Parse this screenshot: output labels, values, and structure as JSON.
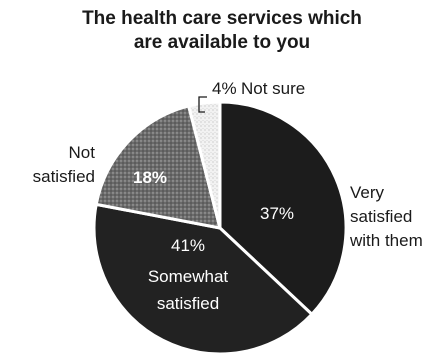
{
  "chart_data": {
    "type": "pie",
    "title": "The health care services which are available to you",
    "title_lines": [
      "The health care services which",
      "are available to you"
    ],
    "slices": [
      {
        "label": "Very satisfied with them",
        "label_lines": [
          "Very",
          "satisfied",
          "with them"
        ],
        "value": 37,
        "value_label": "37%",
        "color": "#1c1c1c"
      },
      {
        "label": "Somewhat satisfied",
        "label_lines": [
          "Somewhat",
          "satisfied"
        ],
        "value": 41,
        "value_label": "41%",
        "color": "#222222"
      },
      {
        "label": "Not satisfied",
        "label_lines": [
          "Not",
          "satisfied"
        ],
        "value": 18,
        "value_label": "18%",
        "color": "#6e6e6e"
      },
      {
        "label": "Not sure",
        "label_lines": [
          "Not sure"
        ],
        "value": 4,
        "value_label": "4%",
        "color": "#e4e4e4"
      }
    ]
  }
}
